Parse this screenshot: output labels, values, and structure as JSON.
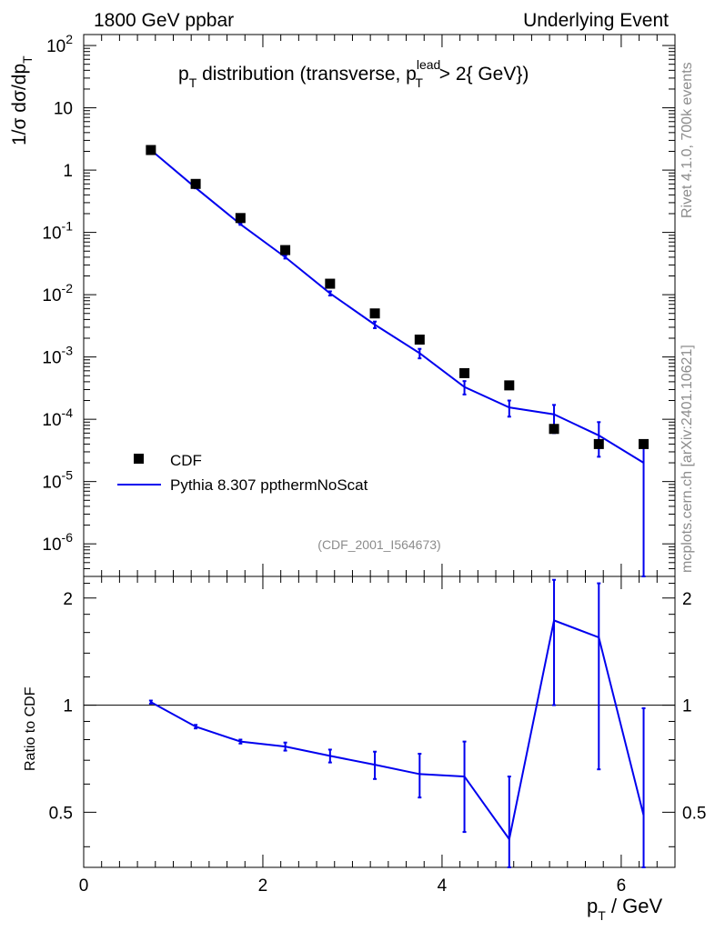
{
  "header": {
    "collider": "1800 GeV ppbar",
    "process": "Underlying Event"
  },
  "side_labels": {
    "rivet": "Rivet 4.1.0,  700k events",
    "mcplots": "mcplots.cern.ch [arXiv:2401.10621]"
  },
  "colors": {
    "mc": "#0000ee",
    "data": "#000000",
    "axis": "#000000",
    "watermark": "#8c8c8c"
  },
  "chart_data": [
    {
      "panel": "main",
      "type": "scatter",
      "title": "p_T distribution (transverse, p_T^lead > 2{ GeV})",
      "title_parts": {
        "pre": "p",
        "sub1": "T",
        "mid": " distribution (transverse, p",
        "sup": "lead",
        "sub2": "T",
        "post": " > 2{ GeV})"
      },
      "ylabel": "1/σ  dσ/dp_T",
      "ylabel_parts": {
        "main": "1/σ  dσ/dp",
        "sub": "T"
      },
      "yscale": "log",
      "ylim": [
        3e-07,
        150
      ],
      "xlim": [
        0,
        6.6
      ],
      "y_tick_labels": [
        "10^-6",
        "10^-5",
        "10^-4",
        "10^-3",
        "10^-2",
        "10^-1",
        "1",
        "10",
        "10^2"
      ],
      "reference_label": "(CDF_2001_I564673)",
      "legend": {
        "position": "bottom-left",
        "entries": [
          "CDF",
          "Pythia 8.307 ppthermNoScat"
        ]
      },
      "series": [
        {
          "name": "CDF",
          "style": "square-markers",
          "x": [
            0.75,
            1.25,
            1.75,
            2.25,
            2.75,
            3.25,
            3.75,
            4.25,
            4.75,
            5.25,
            5.75,
            6.25
          ],
          "y": [
            2.1,
            0.6,
            0.17,
            0.052,
            0.015,
            0.005,
            0.0019,
            0.00055,
            0.00035,
            7e-05,
            4e-05,
            4e-05
          ]
        },
        {
          "name": "Pythia 8.307 ppthermNoScat",
          "style": "line-with-errors",
          "x": [
            0.75,
            1.25,
            1.75,
            2.25,
            2.75,
            3.25,
            3.75,
            4.25,
            4.75,
            5.25,
            5.75,
            6.25
          ],
          "y": [
            2.1,
            0.52,
            0.135,
            0.04,
            0.0105,
            0.0033,
            0.00115,
            0.00033,
            0.000155,
            0.00012,
            5.5e-05,
            2e-05
          ],
          "err_low": [
            2.06,
            0.51,
            0.132,
            0.038,
            0.0097,
            0.0029,
            0.00095,
            0.00025,
            0.00011,
            6e-05,
            2.5e-05,
            3e-07
          ],
          "err_high": [
            2.14,
            0.53,
            0.138,
            0.042,
            0.0113,
            0.0037,
            0.00135,
            0.00041,
            0.0002,
            0.00017,
            9e-05,
            4e-05
          ]
        }
      ]
    },
    {
      "panel": "ratio",
      "type": "line",
      "xlabel": "p_T / GeV",
      "xlabel_parts": {
        "pre": "p",
        "sub": "T",
        "post": " / GeV"
      },
      "ylabel": "Ratio to CDF",
      "ylim": [
        0.35,
        2.3
      ],
      "xlim": [
        0,
        6.6
      ],
      "x_ticks": [
        0,
        2,
        4,
        6
      ],
      "y_ticks": [
        0.5,
        1,
        2
      ],
      "reference_line": 1,
      "series": [
        {
          "name": "Pythia 8.307 ppthermNoScat",
          "x": [
            0.75,
            1.25,
            1.75,
            2.25,
            2.75,
            3.25,
            3.75,
            4.25,
            4.75,
            5.25,
            5.75,
            6.25
          ],
          "y": [
            1.02,
            0.87,
            0.79,
            0.765,
            0.72,
            0.68,
            0.64,
            0.63,
            0.42,
            1.73,
            1.55,
            0.49
          ],
          "err_low": [
            1.01,
            0.86,
            0.78,
            0.745,
            0.69,
            0.62,
            0.55,
            0.44,
            0.35,
            1.0,
            0.66,
            0.35
          ],
          "err_high": [
            1.03,
            0.88,
            0.8,
            0.785,
            0.75,
            0.74,
            0.73,
            0.79,
            0.63,
            2.25,
            2.2,
            0.98
          ]
        }
      ]
    }
  ]
}
